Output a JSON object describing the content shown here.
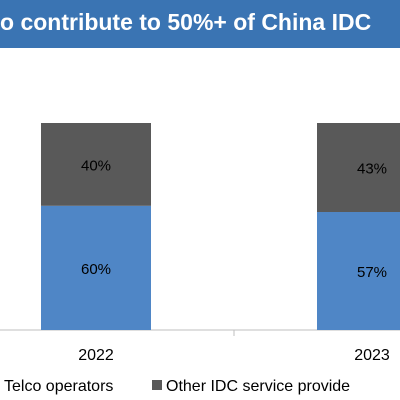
{
  "title": "o contribute to 50%+ of China IDC",
  "colors": {
    "title_bg": "#3a74b3",
    "telco": "#4f86c6",
    "other": "#595959"
  },
  "chart_data": {
    "type": "bar",
    "stacked": true,
    "percent": true,
    "categories": [
      "2022",
      "2023"
    ],
    "series": [
      {
        "name": "Telco operators",
        "values": [
          60,
          57
        ],
        "labels": [
          "60%",
          "57%"
        ]
      },
      {
        "name": "Other IDC service provide",
        "values": [
          40,
          43
        ],
        "labels": [
          "40%",
          "43%"
        ]
      }
    ],
    "ylim": [
      0,
      100
    ],
    "legend": "bottom",
    "grid": false
  }
}
